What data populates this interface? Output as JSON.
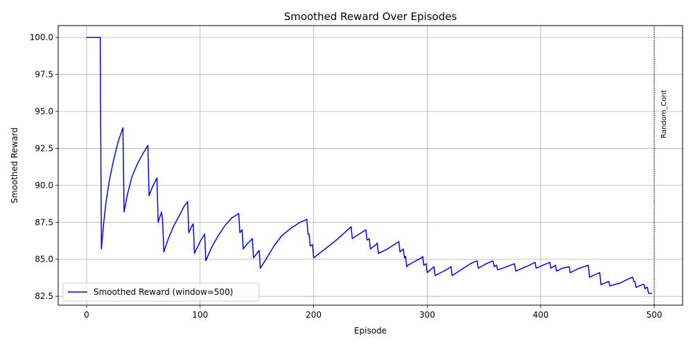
{
  "chart_data": {
    "type": "line",
    "title": "Smoothed Reward Over Episodes",
    "xlabel": "Episode",
    "ylabel": "Smoothed Reward",
    "xlim": [
      -25,
      525
    ],
    "ylim": [
      81.9,
      100.8
    ],
    "xticks": [
      0,
      100,
      200,
      300,
      400,
      500
    ],
    "yticks": [
      82.5,
      85.0,
      87.5,
      90.0,
      92.5,
      95.0,
      97.5,
      100.0
    ],
    "ytick_labels": [
      "82.5",
      "85.0",
      "87.5",
      "90.0",
      "92.5",
      "95.0",
      "97.5",
      "100.0"
    ],
    "grid": true,
    "legend_position": "lower-left",
    "series": [
      {
        "name": "Smoothed Reward (window=500)",
        "color": "#0000ff",
        "x": [
          0,
          12,
          13,
          15,
          17,
          20,
          24,
          28,
          32,
          33,
          36,
          40,
          45,
          50,
          54,
          55,
          58,
          62,
          63,
          66,
          67,
          68,
          72,
          77,
          82,
          86,
          89,
          90,
          93,
          94,
          95,
          100,
          104,
          105,
          110,
          116,
          122,
          128,
          134,
          135,
          137,
          138,
          141,
          146,
          147,
          151,
          152,
          153,
          158,
          165,
          172,
          180,
          188,
          194,
          195,
          196,
          197,
          199,
          200,
          210,
          220,
          233,
          234,
          242,
          246,
          247,
          249,
          250,
          255,
          256,
          257,
          265,
          275,
          276,
          279,
          280,
          281,
          282,
          283,
          290,
          295,
          296,
          297,
          299,
          300,
          306,
          307,
          312,
          317,
          321,
          322,
          330,
          338,
          344,
          345,
          352,
          358,
          359,
          361,
          362,
          363,
          370,
          377,
          378,
          384,
          390,
          395,
          396,
          402,
          408,
          409,
          413,
          414,
          419,
          425,
          426,
          434,
          442,
          443,
          452,
          453,
          460,
          461,
          470,
          478,
          481,
          482,
          483,
          484,
          490,
          491,
          492,
          493,
          494,
          495,
          498
        ],
        "y": [
          100.0,
          100.0,
          85.7,
          87.4,
          88.8,
          90.3,
          91.8,
          93.0,
          93.9,
          88.2,
          89.4,
          90.6,
          91.5,
          92.2,
          92.7,
          89.3,
          89.9,
          90.5,
          87.5,
          88.2,
          87.6,
          85.5,
          86.4,
          87.3,
          88.0,
          88.6,
          88.9,
          86.8,
          87.3,
          87.4,
          85.4,
          86.2,
          86.7,
          84.9,
          85.8,
          86.6,
          87.3,
          87.8,
          88.1,
          86.8,
          87.0,
          85.7,
          86.0,
          86.4,
          85.1,
          85.5,
          85.6,
          84.4,
          85.0,
          85.9,
          86.6,
          87.1,
          87.5,
          87.7,
          86.7,
          86.7,
          85.9,
          86.0,
          85.1,
          85.7,
          86.3,
          87.2,
          86.4,
          86.8,
          87.0,
          86.3,
          86.4,
          85.7,
          86.0,
          86.1,
          85.4,
          85.7,
          86.2,
          85.5,
          85.7,
          85.1,
          85.2,
          84.5,
          84.6,
          84.9,
          85.1,
          85.2,
          84.6,
          84.7,
          84.1,
          84.5,
          83.9,
          84.1,
          84.3,
          84.5,
          83.9,
          84.3,
          84.7,
          84.9,
          84.4,
          84.7,
          84.9,
          84.5,
          84.6,
          84.3,
          84.3,
          84.5,
          84.7,
          84.2,
          84.4,
          84.6,
          84.8,
          84.4,
          84.6,
          84.8,
          84.4,
          84.6,
          84.2,
          84.4,
          84.5,
          84.1,
          84.4,
          84.6,
          83.8,
          84.1,
          83.3,
          83.5,
          83.2,
          83.4,
          83.7,
          83.8,
          83.5,
          83.5,
          83.1,
          83.3,
          83.3,
          83.0,
          83.1,
          83.1,
          82.7,
          82.7
        ]
      }
    ],
    "vertical_lines": [
      {
        "x": 500,
        "label": "Random_Cont",
        "color": "#000000",
        "style": "dotted"
      }
    ]
  }
}
